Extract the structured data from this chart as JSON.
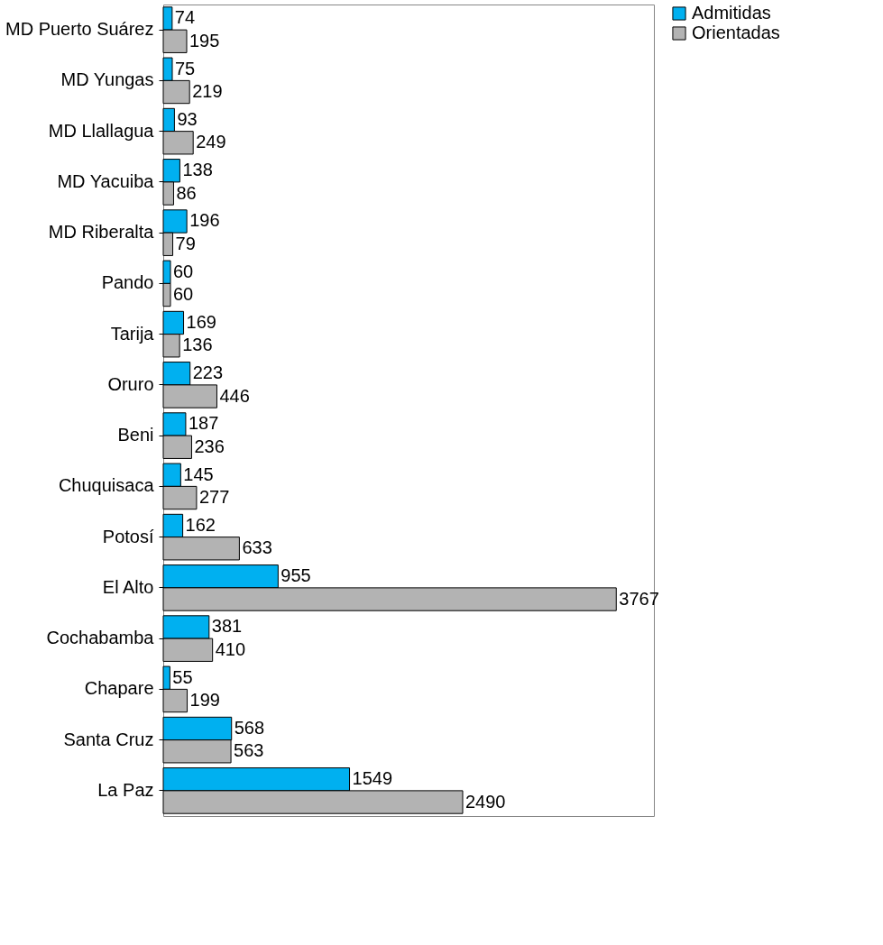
{
  "chart_data": {
    "type": "bar",
    "orientation": "horizontal",
    "categories": [
      "MD Puerto Suárez",
      "MD  Yungas",
      "MD Llallagua",
      "MD Yacuiba",
      "MD Riberalta",
      "Pando",
      "Tarija",
      "Oruro",
      "Beni",
      "Chuquisaca",
      "Potosí",
      "El Alto",
      "Cochabamba",
      "Chapare",
      "Santa Cruz",
      "La Paz"
    ],
    "series": [
      {
        "name": "Admitidas",
        "color": "#00b0f0",
        "values": [
          74,
          75,
          93,
          138,
          196,
          60,
          169,
          223,
          187,
          145,
          162,
          955,
          381,
          55,
          568,
          1549
        ]
      },
      {
        "name": "Orientadas",
        "color": "#b3b3b3",
        "values": [
          195,
          219,
          249,
          86,
          79,
          60,
          136,
          446,
          236,
          277,
          633,
          3767,
          410,
          199,
          563,
          2490
        ]
      }
    ],
    "xlim": [
      0,
      4080
    ],
    "tick_labels": "y",
    "data_labels": true,
    "legend": "right",
    "grid": false
  }
}
